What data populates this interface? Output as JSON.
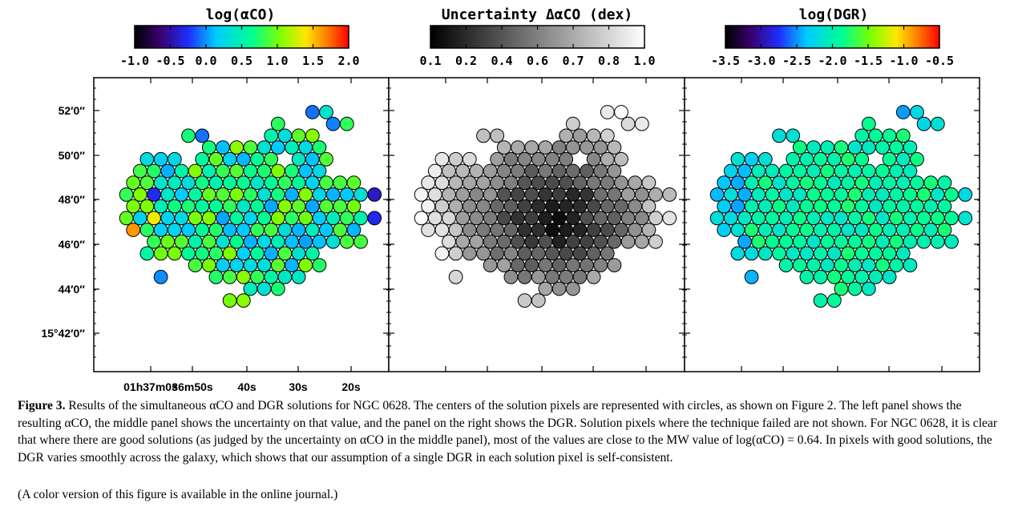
{
  "figure": {
    "panels": [
      {
        "id": "alpha",
        "colorbar_title": "log(αCO)",
        "colorbar_ticks": [
          "-1.0",
          "-0.5",
          "0.0",
          "0.5",
          "1.0",
          "1.5",
          "2.0"
        ],
        "colormap": "rainbow",
        "range": [
          -1.0,
          2.0
        ],
        "circle_count": 170
      },
      {
        "id": "uncertainty",
        "colorbar_title": "Uncertainty ΔαCO (dex)",
        "colorbar_ticks": [
          "0.1",
          "0.2",
          "0.4",
          "0.6",
          "0.7",
          "0.8",
          "1.0"
        ],
        "colormap": "gray",
        "range": [
          0.1,
          1.0
        ],
        "circle_count": 170
      },
      {
        "id": "dgr",
        "colorbar_title": "log(DGR)",
        "colorbar_ticks": [
          "-3.5",
          "-3.0",
          "-2.5",
          "-2.0",
          "-1.5",
          "-1.0",
          "-0.5"
        ],
        "colormap": "rainbow",
        "range": [
          -3.5,
          -0.5
        ],
        "circle_count": 170
      }
    ],
    "y_tick_labels": [
      "52′0″",
      "50′0″",
      "48′0″",
      "46′0″",
      "44′0″",
      "15°42′0″"
    ],
    "x_tick_labels": [
      "01h37m0s",
      "36m50s",
      "40s",
      "30s",
      "20s"
    ]
  },
  "caption": {
    "label": "Figure 3.",
    "text": "Results of the simultaneous αCO and DGR solutions for NGC 0628. The centers of the solution pixels are represented with circles, as shown on Figure 2. The left panel shows the resulting αCO, the middle panel shows the uncertainty on that value, and the panel on the right shows the DGR. Solution pixels where the technique failed are not shown. For NGC 0628, it is clear that where there are good solutions (as judged by the uncertainty on αCO in the middle panel), most of the values are close to the MW value of log(αCO) = 0.64. In pixels with good solutions, the DGR varies smoothly across the galaxy, which shows that our assumption of a single DGR in each solution pixel is self-consistent.",
    "note": "(A color version of this figure is available in the online journal.)"
  }
}
